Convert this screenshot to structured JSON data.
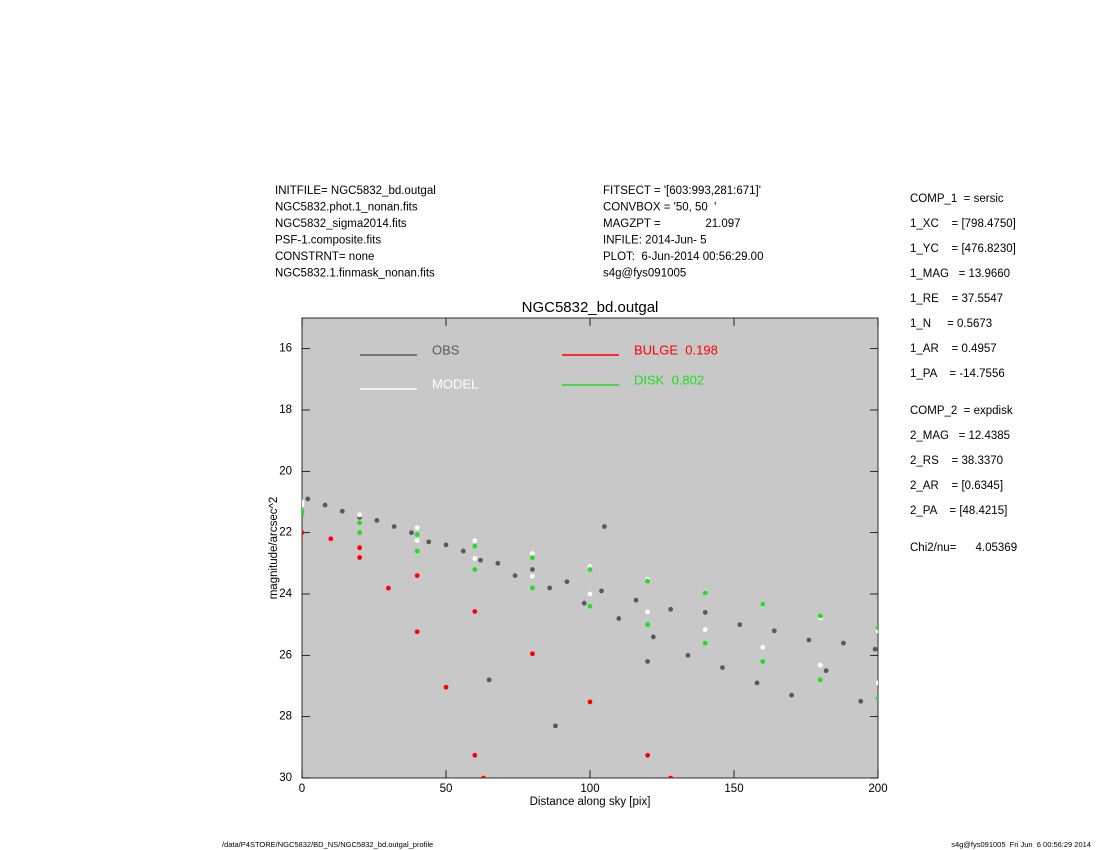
{
  "header_left": [
    "INITFILE= NGC5832_bd.outgal",
    "NGC5832.phot.1_nonan.fits",
    "NGC5832_sigma2014.fits",
    "PSF-1.composite.fits",
    "CONSTRNT= none",
    "NGC5832.1.finmask_nonan.fits"
  ],
  "header_right": [
    "FITSECT = '[603:993,281:671]'",
    "CONVBOX = '50, 50  '",
    "MAGZPT =              21.097",
    "INFILE: 2014-Jun- 5",
    "PLOT:  6-Jun-2014 00:56:29.00",
    "s4g@fys091005"
  ],
  "components": [
    "COMP_1  = sersic",
    "1_XC    = [798.4750]",
    "1_YC    = [476.8230]",
    "1_MAG   = 13.9660",
    "1_RE    = 37.5547",
    "1_N     = 0.5673",
    "1_AR    = 0.4957",
    "1_PA    = -14.7556",
    "COMP_2  = expdisk",
    "2_MAG   = 12.4385",
    "2_RS    = 38.3370",
    "2_AR    = [0.6345]",
    "2_PA    = [48.4215]",
    "Chi2/nu=      4.05369"
  ],
  "footer_left": "/data/P4STORE/NGC5832/BD_NS/NGC5832_bd.outgal_profile",
  "footer_right": "s4g@fys091005  Fri Jun  6 00:56:29 2014",
  "chart_data": {
    "type": "scatter",
    "title": "NGC5832_bd.outgal",
    "x_label": "Distance along sky [pix]",
    "y_label": "magnitude/arcsec^2",
    "xlim": [
      0,
      200
    ],
    "xticks": [
      0,
      50,
      100,
      150,
      200
    ],
    "ylim": [
      15,
      30
    ],
    "yticks": [
      16,
      18,
      20,
      22,
      24,
      26,
      28,
      30
    ],
    "y_reversed": true,
    "background": "#c8c8c8",
    "series": [
      {
        "name": "OBS",
        "color": "#5a5a5a",
        "x": [
          2,
          8,
          14,
          20,
          26,
          32,
          38,
          44,
          50,
          56,
          62,
          68,
          74,
          80,
          86,
          92,
          98,
          104,
          110,
          116,
          122,
          128,
          134,
          140,
          146,
          152,
          158,
          164,
          170,
          176,
          182,
          188,
          194,
          199,
          65,
          88,
          105,
          120
        ],
        "values": [
          20.9,
          21.1,
          21.3,
          21.5,
          21.6,
          21.8,
          22.0,
          22.3,
          22.4,
          22.6,
          22.9,
          23.0,
          23.4,
          23.2,
          23.8,
          23.6,
          24.3,
          23.9,
          24.8,
          24.2,
          25.4,
          24.5,
          26.0,
          24.6,
          26.4,
          25.0,
          26.9,
          25.2,
          27.3,
          25.5,
          26.5,
          25.6,
          27.5,
          25.8,
          26.8,
          28.3,
          21.8,
          26.2
        ]
      },
      {
        "name": "MODEL",
        "color": "#ffffff",
        "x": [
          0,
          20,
          40,
          60,
          80,
          100,
          120,
          140,
          160,
          180,
          200,
          0,
          20,
          40,
          60,
          80,
          100,
          120,
          140,
          160,
          180,
          200
        ],
        "values": [
          21.0,
          21.42,
          21.84,
          22.26,
          22.68,
          23.1,
          23.52,
          23.94,
          24.36,
          24.78,
          25.2,
          21.1,
          21.68,
          22.26,
          22.84,
          23.42,
          24.0,
          24.58,
          25.16,
          25.74,
          26.32,
          26.9
        ]
      },
      {
        "name": "BULGE  0.198",
        "color": "#ff0000",
        "x": [
          0,
          10,
          20,
          30,
          40,
          50,
          60,
          63,
          20,
          40,
          60,
          80,
          100,
          120,
          128
        ],
        "values": [
          22.0,
          22.2,
          22.81,
          23.81,
          25.23,
          27.04,
          29.26,
          30.0,
          22.49,
          23.4,
          24.57,
          25.95,
          27.52,
          29.26,
          30.0
        ]
      },
      {
        "name": "DISK  0.802",
        "color": "#22dd22",
        "x": [
          0,
          20,
          40,
          60,
          80,
          100,
          120,
          140,
          160,
          180,
          200,
          0,
          20,
          40,
          60,
          80,
          100,
          120,
          140,
          160,
          180,
          200
        ],
        "values": [
          21.3,
          21.68,
          22.06,
          22.44,
          22.82,
          23.2,
          23.58,
          23.96,
          24.34,
          24.72,
          25.1,
          21.4,
          22.0,
          22.6,
          23.2,
          23.8,
          24.4,
          25.0,
          25.6,
          26.2,
          26.8,
          27.4
        ]
      }
    ]
  }
}
